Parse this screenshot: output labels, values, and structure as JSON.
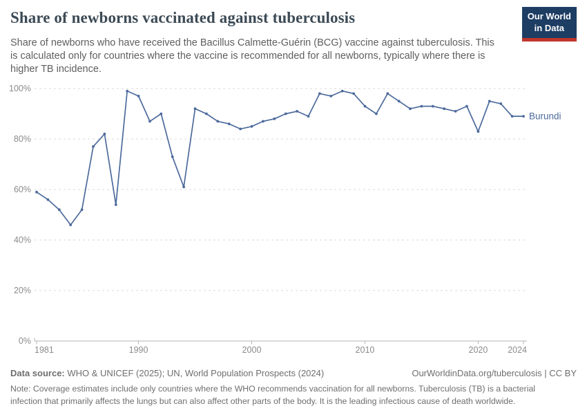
{
  "header": {
    "title": "Share of newborns vaccinated against tuberculosis",
    "subtitle_lines": [
      "Share of newborns who have received the Bacillus Calmette-Guérin (BCG) vaccine against tuberculosis. This",
      "is calculated only for countries where the vaccine is recommended for all newborns, typically where there is",
      "higher TB incidence."
    ],
    "logo_lines": [
      "Our World",
      "in Data"
    ]
  },
  "colors": {
    "line": "#4C6A9C",
    "entity_label": "#4C6A9C",
    "logo_bg": "#1d3d63",
    "logo_stripe": "#c0352c",
    "title_text": "#3c4a55",
    "grid": "#d8d8d8",
    "axis": "#b3b3b3",
    "axis_text": "#8b8b8b"
  },
  "chart_data": {
    "type": "line",
    "title": "Share of newborns vaccinated against tuberculosis",
    "xlabel": "",
    "ylabel": "",
    "x": [
      1981,
      1982,
      1983,
      1984,
      1985,
      1986,
      1987,
      1988,
      1989,
      1990,
      1991,
      1992,
      1993,
      1994,
      1995,
      1996,
      1997,
      1998,
      1999,
      2000,
      2001,
      2002,
      2003,
      2004,
      2005,
      2006,
      2007,
      2008,
      2009,
      2010,
      2011,
      2012,
      2013,
      2014,
      2015,
      2016,
      2017,
      2018,
      2019,
      2020,
      2021,
      2022,
      2023,
      2024
    ],
    "series": [
      {
        "name": "Burundi",
        "values": [
          59,
          56,
          52,
          46,
          52,
          77,
          82,
          54,
          99,
          97,
          87,
          90,
          73,
          61,
          92,
          90,
          87,
          86,
          84,
          85,
          87,
          88,
          90,
          91,
          89,
          98,
          97,
          99,
          98,
          93,
          90,
          98,
          95,
          92,
          93,
          93,
          92,
          91,
          93,
          83,
          95,
          94,
          89,
          89
        ]
      }
    ],
    "xlim": [
      1981,
      2024
    ],
    "ylim": [
      0,
      100
    ],
    "x_ticks": [
      1981,
      1990,
      2000,
      2010,
      2020,
      2024
    ],
    "y_ticks": [
      0,
      20,
      40,
      60,
      80,
      100
    ],
    "y_tick_suffix": "%",
    "grid": "horizontal-dashed",
    "legend": "line-end-label",
    "entity_label": "Burundi"
  },
  "footer": {
    "data_source_label": "Data source:",
    "data_source_text": " WHO & UNICEF (2025); UN, World Population Prospects (2024)",
    "link_text": "OurWorldinData.org/tuberculosis | CC BY",
    "note_label": "Note:",
    "note_lines": [
      " Coverage estimates include only countries where the WHO recommends vaccination for all newborns. Tuberculosis (TB) is a bacterial",
      "infection that primarily affects the lungs but can also affect other parts of the body. It is the leading infectious cause of death worldwide."
    ]
  }
}
